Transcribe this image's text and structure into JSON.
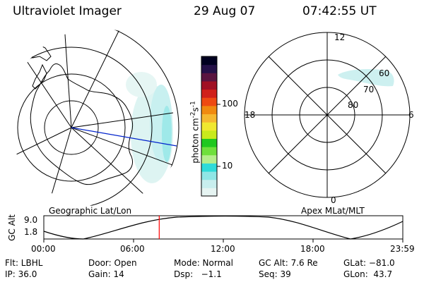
{
  "header": {
    "instrument": "Ultraviolet Imager",
    "date": "29 Aug 07",
    "time": "07:42:55 UT"
  },
  "left_map": {
    "caption": "Geographic Lat/Lon"
  },
  "right_map": {
    "caption": "Apex MLat/MLT",
    "mlt_labels": {
      "top": "12",
      "bottom": "0",
      "left": "18",
      "right": "6"
    },
    "lat_labels": [
      "60",
      "70",
      "80"
    ]
  },
  "colorbar": {
    "unit_label": "photon cm",
    "unit_exp1": "-2",
    "unit_mid": "s",
    "unit_exp2": "-1",
    "ticks": [
      "100",
      "10"
    ],
    "colors": [
      "#e6f4f2",
      "#c8eeee",
      "#8fe6e6",
      "#2edbd9",
      "#b4ee8c",
      "#6fe03c",
      "#1fc81f",
      "#c8ea1c",
      "#f0e830",
      "#f5b830",
      "#f08a10",
      "#ee4a12",
      "#d0201a",
      "#a01024",
      "#5a1440",
      "#241048",
      "#000020"
    ]
  },
  "altitude_plot": {
    "ylabel": "GC Alt",
    "y_ticks": [
      "9.0",
      "1.8"
    ],
    "x_ticks": [
      "00:00",
      "06:00",
      "12:00",
      "18:00",
      "23:59"
    ],
    "current_time_fraction": 0.3215
  },
  "footer": {
    "row1": [
      {
        "label": "Flt: LBHL"
      },
      {
        "label": "Door: Open"
      },
      {
        "label": "Mode: Normal"
      },
      {
        "label": "GC Alt: 7.6 Re"
      },
      {
        "label": "GLat: −81.0"
      }
    ],
    "row2": [
      {
        "label": "IP: 36.0"
      },
      {
        "label": "Gain: 14"
      },
      {
        "label": "Dsp:   −1.1"
      },
      {
        "label": "Seq: 39"
      },
      {
        "label": "GLon:  43.7"
      }
    ]
  },
  "colors": {
    "orbit_line": "#0022cc",
    "time_marker": "#ff0000",
    "aurora": "#c8eeee"
  }
}
